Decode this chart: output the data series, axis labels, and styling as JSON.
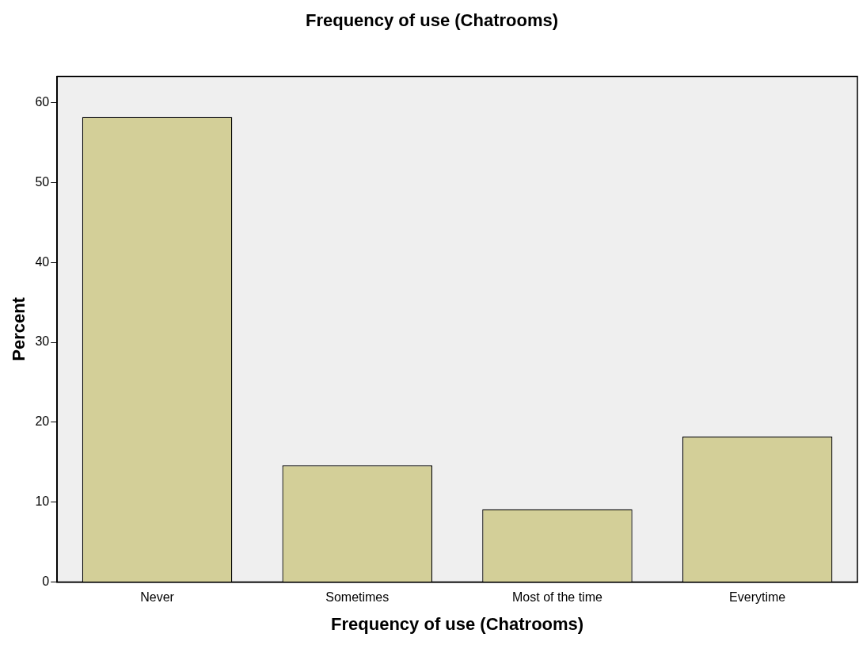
{
  "chart_data": {
    "type": "bar",
    "title": "Frequency of use (Chatrooms)",
    "xlabel": "Frequency of use (Chatrooms)",
    "ylabel": "Percent",
    "categories": [
      "Never",
      "Sometimes",
      "Most of the time",
      "Everytime"
    ],
    "values": [
      58.2,
      14.6,
      9.1,
      18.2
    ],
    "color": "#d3cf98",
    "ylim": [
      0,
      63.3
    ],
    "yticks": [
      0,
      10,
      20,
      30,
      40,
      50,
      60
    ],
    "grid": false,
    "legend": false
  }
}
